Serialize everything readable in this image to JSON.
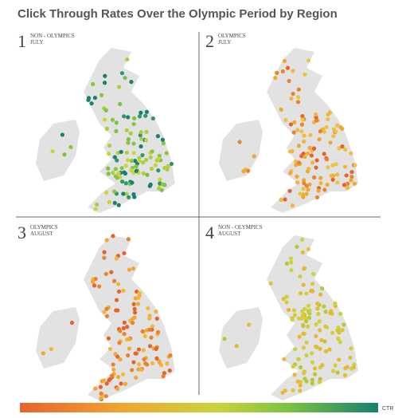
{
  "title": "Click Through Rates Over the Olympic Period by Region",
  "panels": [
    {
      "number": "1",
      "label": [
        "NON - OLYMPICS",
        "JULY"
      ]
    },
    {
      "number": "2",
      "label": [
        "OLYMPICS",
        "JULY"
      ]
    },
    {
      "number": "3",
      "label": [
        "OLYMPICS",
        "AUGUST"
      ]
    },
    {
      "number": "4",
      "label": [
        "NON - OLYMPICS",
        "AUGUST"
      ]
    }
  ],
  "legend": {
    "label": "CTR"
  }
}
